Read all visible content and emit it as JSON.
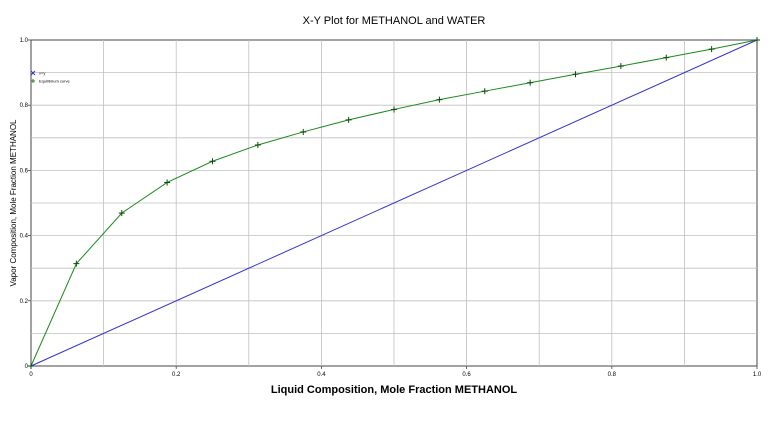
{
  "chart_data": {
    "type": "line",
    "title": "X-Y Plot for METHANOL and WATER",
    "xlabel": "Liquid Composition, Mole Fraction METHANOL",
    "ylabel": "Vapor Composition, Mole Fraction METHANOL",
    "xlim": [
      0,
      1
    ],
    "ylim": [
      0,
      1
    ],
    "x_ticks": [
      "0",
      "0.2",
      "0.4",
      "0.6",
      "0.8",
      "1.0"
    ],
    "y_ticks": [
      "0",
      "0.2",
      "0.4",
      "0.6",
      "0.8",
      "1.0"
    ],
    "grid": true,
    "legend_position": "top-left",
    "series": [
      {
        "name": "x=y",
        "color": "#3333cc",
        "marker": "x",
        "x": [
          0,
          1
        ],
        "y": [
          0,
          1
        ]
      },
      {
        "name": "Equilibrium curve",
        "color": "#1a8a1a",
        "marker": "plus",
        "x": [
          0,
          0.0625,
          0.125,
          0.1875,
          0.25,
          0.3125,
          0.375,
          0.4375,
          0.5,
          0.5625,
          0.625,
          0.6875,
          0.75,
          0.8125,
          0.875,
          0.9375,
          1.0
        ],
        "y": [
          0,
          0.314,
          0.469,
          0.563,
          0.628,
          0.678,
          0.718,
          0.755,
          0.787,
          0.817,
          0.843,
          0.869,
          0.895,
          0.92,
          0.946,
          0.972,
          1.0
        ]
      }
    ]
  }
}
